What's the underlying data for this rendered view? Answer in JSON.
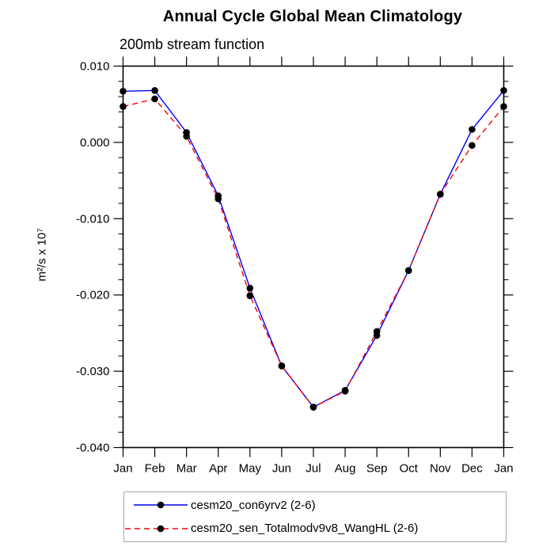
{
  "chart_data": {
    "type": "line",
    "title": "Annual Cycle Global Mean Climatology",
    "subtitle": "200mb stream function",
    "ylabel": "m²/s x 10⁷",
    "xlabel": "",
    "categories": [
      "Jan",
      "Feb",
      "Mar",
      "Apr",
      "May",
      "Jun",
      "Jul",
      "Aug",
      "Sep",
      "Oct",
      "Nov",
      "Dec",
      "Jan"
    ],
    "series": [
      {
        "label": "cesm20_con6yrv2 (2-6)",
        "color": "#0000ff",
        "line_style": "solid",
        "values": [
          0.0067,
          0.0068,
          0.0013,
          -0.007,
          -0.0191,
          -0.0293,
          -0.0347,
          -0.0325,
          -0.0253,
          -0.0168,
          -0.0068,
          0.0017,
          0.0068
        ]
      },
      {
        "label": "cesm20_sen_Totalmodv9v8_WangHL (2-6)",
        "color": "#ff0000",
        "line_style": "dashed",
        "values": [
          0.0047,
          0.0057,
          0.0008,
          -0.0074,
          -0.0201,
          -0.0293,
          -0.0347,
          -0.0326,
          -0.0248,
          -0.0168,
          -0.0068,
          -0.0004,
          0.0047
        ]
      }
    ],
    "marker": {
      "shape": "circle",
      "color": "#000000"
    },
    "ylim": [
      -0.04,
      0.01
    ],
    "ytick_labels": [
      "0.010",
      "0.000",
      "-0.010",
      "-0.020",
      "-0.030",
      "-0.040"
    ],
    "y_minor_per_major": 5,
    "grid": false,
    "legend_position": "bottom",
    "axis_color": "#000000"
  }
}
